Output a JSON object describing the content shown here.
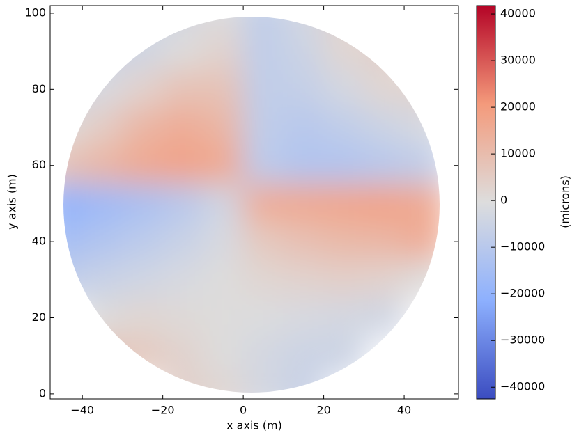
{
  "chart_data": {
    "type": "heatmap",
    "xlabel": "x axis (m)",
    "ylabel": "y axis (m)",
    "colorbar_label": "(microns)",
    "xlim": [
      -48,
      53.5
    ],
    "ylim": [
      -1.3,
      102
    ],
    "xticks": [
      {
        "value": -40,
        "label": "−40"
      },
      {
        "value": -20,
        "label": "−20"
      },
      0,
      20,
      40
    ],
    "yticks": [
      0,
      20,
      40,
      60,
      80,
      100
    ],
    "x": [
      -45,
      -35,
      -25,
      -15,
      -5,
      5,
      15,
      25,
      35,
      45
    ],
    "y": [
      100,
      90,
      80,
      70,
      60,
      50,
      40,
      30,
      20,
      10,
      0
    ],
    "values": [
      [
        null,
        null,
        -5000,
        -3000,
        0,
        -8000,
        -3000,
        3000,
        null,
        null
      ],
      [
        null,
        -6000,
        -4000,
        0,
        3000,
        -8000,
        -5000,
        2000,
        4000,
        null
      ],
      [
        -5000,
        -2000,
        3000,
        8000,
        8000,
        -8000,
        -7000,
        -3000,
        2000,
        3000
      ],
      [
        0,
        5000,
        12000,
        15000,
        12000,
        -8000,
        -10000,
        -8000,
        -5000,
        -2000
      ],
      [
        8000,
        12000,
        16000,
        18000,
        16000,
        -9000,
        -12000,
        -12000,
        -10000,
        -8000
      ],
      [
        -20000,
        -17000,
        -14000,
        -10000,
        -4000,
        15000,
        16000,
        17000,
        18000,
        16000
      ],
      [
        -15000,
        -12000,
        -9000,
        -6000,
        -2000,
        6000,
        9000,
        11000,
        12000,
        15000
      ],
      [
        -8000,
        -6000,
        -4000,
        -2000,
        0,
        2000,
        3000,
        4000,
        3000,
        0
      ],
      [
        null,
        0,
        2000,
        1000,
        0,
        -1000,
        -2000,
        -3000,
        -4000,
        null
      ],
      [
        null,
        8000,
        6000,
        3000,
        0,
        -3000,
        -5000,
        -5000,
        null,
        null
      ],
      [
        null,
        null,
        null,
        4000,
        2000,
        -3000,
        -6000,
        null,
        null,
        null
      ]
    ],
    "clim": [
      -42500,
      41800
    ],
    "colormap": [
      "#3b4cc0",
      "#8db0fe",
      "#dddddd",
      "#f49a7b",
      "#b40426"
    ],
    "cticks": [
      {
        "value": -40000,
        "label": "−40000"
      },
      {
        "value": -30000,
        "label": "−30000"
      },
      {
        "value": -20000,
        "label": "−20000"
      },
      {
        "value": -10000,
        "label": "−10000"
      },
      0,
      10000,
      20000,
      30000,
      40000
    ]
  }
}
